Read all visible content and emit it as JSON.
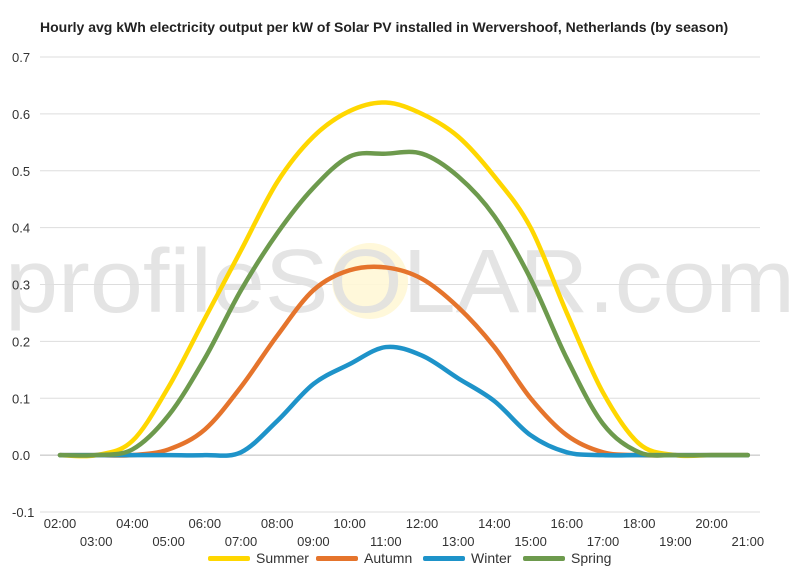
{
  "watermark": "profileSOLAR.com",
  "chart_data": {
    "type": "line",
    "title": "Hourly avg kWh electricity output per kW of Solar PV installed in Wervershoof, Netherlands (by season)",
    "xlabel": "",
    "ylabel": "",
    "ylim": [
      -0.1,
      0.7
    ],
    "yticks": [
      "0.7",
      "0.6",
      "0.5",
      "0.4",
      "0.3",
      "0.2",
      "0.1",
      "0.0",
      "-0.1"
    ],
    "grid": true,
    "legend_position": "bottom",
    "x": [
      "02:00",
      "03:00",
      "04:00",
      "05:00",
      "06:00",
      "07:00",
      "08:00",
      "09:00",
      "10:00",
      "11:00",
      "12:00",
      "13:00",
      "14:00",
      "15:00",
      "16:00",
      "17:00",
      "18:00",
      "19:00",
      "20:00",
      "21:00"
    ],
    "series": [
      {
        "name": "Summer",
        "color": "#ffd700",
        "values": [
          0.0,
          0.0,
          0.025,
          0.12,
          0.24,
          0.36,
          0.48,
          0.56,
          0.605,
          0.62,
          0.6,
          0.56,
          0.49,
          0.4,
          0.25,
          0.11,
          0.02,
          0.0,
          0.0,
          0.0
        ]
      },
      {
        "name": "Autumn",
        "color": "#e5742c",
        "values": [
          0.0,
          0.0,
          0.0,
          0.01,
          0.045,
          0.12,
          0.21,
          0.29,
          0.325,
          0.33,
          0.31,
          0.26,
          0.19,
          0.1,
          0.035,
          0.005,
          0.0,
          0.0,
          0.0,
          0.0
        ]
      },
      {
        "name": "Winter",
        "color": "#1e93c9",
        "values": [
          0.0,
          0.0,
          0.0,
          0.0,
          0.0,
          0.005,
          0.06,
          0.125,
          0.16,
          0.19,
          0.175,
          0.135,
          0.095,
          0.035,
          0.005,
          0.0,
          0.0,
          0.0,
          0.0,
          0.0
        ]
      },
      {
        "name": "Spring",
        "color": "#6d9a4d",
        "values": [
          0.0,
          0.0,
          0.01,
          0.07,
          0.17,
          0.29,
          0.39,
          0.47,
          0.525,
          0.53,
          0.53,
          0.49,
          0.42,
          0.31,
          0.17,
          0.055,
          0.005,
          0.0,
          0.0,
          0.0
        ]
      }
    ]
  }
}
